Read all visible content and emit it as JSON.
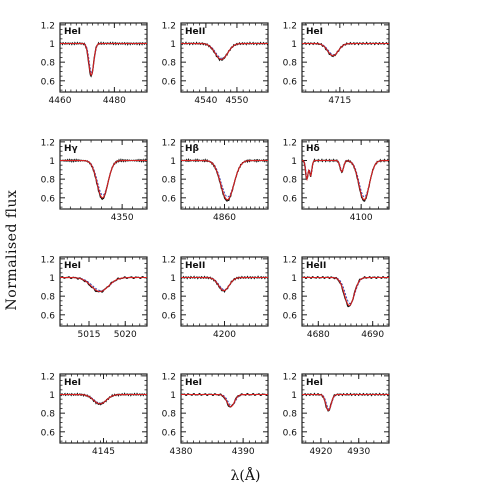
{
  "figure": {
    "ylabel": "Normalised flux",
    "xlabel": "λ(Å)"
  },
  "colors": {
    "observed": "#111111",
    "model": "#d42020",
    "model_alt": "#2b3fb0",
    "frame": "#222222"
  },
  "chart_data": [
    {
      "type": "line",
      "label": "HeI",
      "xlim": [
        4460,
        4492
      ],
      "ylim": [
        0.48,
        1.22
      ],
      "xticks": [
        4460,
        4480
      ],
      "yticks": [
        1.2,
        1,
        0.8,
        0.6
      ],
      "yticklabels": [
        "1.2",
        "1",
        "0.8",
        "0.6"
      ],
      "lines": [
        {
          "center": 4471.5,
          "depth": 0.34,
          "width": 0.9
        }
      ],
      "series": [
        {
          "x": [
            4460,
            4466,
            4469,
            4470.5,
            4471.5,
            4472.5,
            4474,
            4478,
            4486,
            4492
          ],
          "y": [
            1.0,
            0.99,
            0.96,
            0.86,
            0.66,
            0.86,
            0.96,
            0.99,
            1.0,
            0.98
          ]
        }
      ]
    },
    {
      "type": "line",
      "label": "HeII",
      "xlim": [
        4532,
        4560
      ],
      "ylim": [
        0.48,
        1.22
      ],
      "xticks": [
        4540,
        4550
      ],
      "yticks": [
        1.2,
        1,
        0.8,
        0.6
      ],
      "yticklabels": [
        "1.2",
        "1",
        "0.8",
        "0.6"
      ],
      "lines": [
        {
          "center": 4545,
          "depth": 0.17,
          "width": 2.0
        }
      ],
      "series": [
        {
          "x": [
            4532,
            4536,
            4540,
            4542,
            4545,
            4548,
            4550,
            4554,
            4560
          ],
          "y": [
            1.0,
            0.99,
            0.97,
            0.9,
            0.82,
            0.9,
            0.97,
            0.99,
            0.99
          ]
        }
      ]
    },
    {
      "type": "line",
      "label": "HeI",
      "xlim": [
        4705,
        4728
      ],
      "ylim": [
        0.48,
        1.22
      ],
      "xticks": [
        4715
      ],
      "yticks": [
        1.2,
        1,
        0.8,
        0.6
      ],
      "yticklabels": [
        "1.2",
        "1",
        "0.8",
        "0.6"
      ],
      "lines": [
        {
          "center": 4713.2,
          "depth": 0.13,
          "width": 1.4
        }
      ],
      "series": [
        {
          "x": [
            4705,
            4709,
            4711.5,
            4713.2,
            4715,
            4718,
            4722,
            4728
          ],
          "y": [
            1.0,
            0.99,
            0.95,
            0.86,
            0.94,
            0.99,
            1.0,
            1.0
          ]
        }
      ]
    },
    {
      "type": "line",
      "label": "Hγ",
      "xlim": [
        4320,
        4362
      ],
      "ylim": [
        0.48,
        1.22
      ],
      "xticks": [
        4350
      ],
      "yticks": [
        1.2,
        1,
        0.8,
        0.6
      ],
      "yticklabels": [
        "1.2",
        "1",
        "0.8",
        "0.6"
      ],
      "lines": [
        {
          "center": 4340.5,
          "depth": 0.4,
          "width": 2.6
        }
      ],
      "series": [
        {
          "x": [
            4320,
            4328,
            4334,
            4337,
            4340.5,
            4344,
            4347,
            4353,
            4362
          ],
          "y": [
            1.0,
            0.98,
            0.9,
            0.76,
            0.6,
            0.76,
            0.9,
            0.98,
            1.0
          ]
        }
      ]
    },
    {
      "type": "line",
      "label": "Hβ",
      "xlim": [
        4840,
        4880
      ],
      "ylim": [
        0.48,
        1.22
      ],
      "xticks": [
        4860
      ],
      "yticks": [
        1.2,
        1,
        0.8,
        0.6
      ],
      "yticklabels": [
        "1.2",
        "1",
        "0.8",
        "0.6"
      ],
      "lines": [
        {
          "center": 4861.3,
          "depth": 0.42,
          "width": 3.0
        }
      ],
      "series": [
        {
          "x": [
            4840,
            4848,
            4854,
            4858,
            4861.3,
            4864.5,
            4868,
            4874,
            4880
          ],
          "y": [
            1.0,
            0.98,
            0.9,
            0.76,
            0.58,
            0.76,
            0.9,
            0.98,
            1.0
          ]
        }
      ]
    },
    {
      "type": "line",
      "label": "Hδ",
      "xlim": [
        4066,
        4116
      ],
      "ylim": [
        0.48,
        1.22
      ],
      "xticks": [
        4100
      ],
      "yticks": [
        1.2,
        1,
        0.8,
        0.6
      ],
      "yticklabels": [
        "1.2",
        "1",
        "0.8",
        "0.6"
      ],
      "lines": [
        {
          "center": 4068.8,
          "depth": 0.2,
          "width": 0.7
        },
        {
          "center": 4071,
          "depth": 0.16,
          "width": 0.7
        },
        {
          "center": 4088.9,
          "depth": 0.12,
          "width": 1.0
        },
        {
          "center": 4101.7,
          "depth": 0.42,
          "width": 3.0
        }
      ],
      "series": [
        {
          "x": [
            4066,
            4068.8,
            4071,
            4076,
            4085,
            4088.9,
            4093,
            4097,
            4101.7,
            4106,
            4110,
            4116
          ],
          "y": [
            0.98,
            0.8,
            0.84,
            0.97,
            0.95,
            0.86,
            0.94,
            0.82,
            0.58,
            0.82,
            0.96,
            1.0
          ]
        }
      ]
    },
    {
      "type": "line",
      "label": "HeI",
      "xlim": [
        5011,
        5023
      ],
      "ylim": [
        0.48,
        1.22
      ],
      "xticks": [
        5015,
        5020
      ],
      "yticks": [
        1.2,
        1,
        0.8,
        0.6
      ],
      "yticklabels": [
        "1.2",
        "1",
        "0.8",
        "0.6"
      ],
      "lines": [
        {
          "center": 5016.5,
          "depth": 0.15,
          "width": 1.2
        }
      ],
      "series": [
        {
          "x": [
            5011,
            5013,
            5014.5,
            5016.5,
            5018.5,
            5020,
            5023
          ],
          "y": [
            1.0,
            0.98,
            0.93,
            0.85,
            0.93,
            0.98,
            1.0
          ]
        }
      ]
    },
    {
      "type": "line",
      "label": "HeII",
      "xlim": [
        4186,
        4214
      ],
      "ylim": [
        0.48,
        1.22
      ],
      "xticks": [
        4200
      ],
      "yticks": [
        1.2,
        1,
        0.8,
        0.6
      ],
      "yticklabels": [
        "1.2",
        "1",
        "0.8",
        "0.6"
      ],
      "lines": [
        {
          "center": 4199.8,
          "depth": 0.14,
          "width": 1.7
        }
      ],
      "series": [
        {
          "x": [
            4186,
            4192,
            4196,
            4199.8,
            4203.5,
            4207,
            4214
          ],
          "y": [
            1.0,
            0.99,
            0.95,
            0.86,
            0.95,
            0.99,
            1.0
          ]
        }
      ]
    },
    {
      "type": "line",
      "label": "HeII",
      "xlim": [
        4677,
        4693
      ],
      "ylim": [
        0.48,
        1.22
      ],
      "xticks": [
        4680,
        4690
      ],
      "yticks": [
        1.2,
        1,
        0.8,
        0.6
      ],
      "yticklabels": [
        "1.2",
        "1",
        "0.8",
        "0.6"
      ],
      "lines": [
        {
          "center": 4685.7,
          "depth": 0.3,
          "width": 0.9
        }
      ],
      "series": [
        {
          "x": [
            4677,
            4681,
            4683.5,
            4685.7,
            4688,
            4690.5,
            4693
          ],
          "y": [
            1.0,
            0.99,
            0.93,
            0.71,
            0.93,
            0.99,
            1.0
          ]
        }
      ]
    },
    {
      "type": "line",
      "label": "HeI",
      "xlim": [
        4130,
        4160
      ],
      "ylim": [
        0.48,
        1.22
      ],
      "xticks": [
        4145
      ],
      "yticks": [
        1.2,
        1,
        0.8,
        0.6
      ],
      "yticklabels": [
        "1.2",
        "1",
        "0.8",
        "0.6"
      ],
      "lines": [
        {
          "center": 4143.8,
          "depth": 0.1,
          "width": 2.2
        }
      ],
      "series": [
        {
          "x": [
            4130,
            4136,
            4140,
            4143.8,
            4147.5,
            4152,
            4160
          ],
          "y": [
            1.0,
            0.98,
            0.94,
            0.9,
            0.94,
            0.98,
            0.99
          ]
        }
      ]
    },
    {
      "type": "line",
      "label": "HeI",
      "xlim": [
        4380,
        4394
      ],
      "ylim": [
        0.48,
        1.22
      ],
      "xticks": [
        4380,
        4390
      ],
      "yticks": [
        1.2,
        1,
        0.8,
        0.6
      ],
      "yticklabels": [
        "1.2",
        "1",
        "0.8",
        "0.6"
      ],
      "lines": [
        {
          "center": 4388,
          "depth": 0.13,
          "width": 0.6
        }
      ],
      "series": [
        {
          "x": [
            4380,
            4384,
            4386.5,
            4388,
            4389.5,
            4391,
            4394
          ],
          "y": [
            1.0,
            0.99,
            0.95,
            0.86,
            0.95,
            0.99,
            1.0
          ]
        }
      ]
    },
    {
      "type": "line",
      "label": "HeI",
      "xlim": [
        4915,
        4938
      ],
      "ylim": [
        0.48,
        1.22
      ],
      "xticks": [
        4920,
        4930
      ],
      "yticks": [
        1.2,
        1,
        0.8,
        0.6
      ],
      "yticklabels": [
        "1.2",
        "1",
        "0.8",
        "0.6"
      ],
      "lines": [
        {
          "center": 4922,
          "depth": 0.17,
          "width": 0.7
        }
      ],
      "series": [
        {
          "x": [
            4915,
            4919,
            4920.8,
            4922,
            4923.2,
            4925,
            4938
          ],
          "y": [
            1.0,
            0.99,
            0.94,
            0.83,
            0.94,
            0.99,
            1.0
          ]
        }
      ]
    }
  ]
}
